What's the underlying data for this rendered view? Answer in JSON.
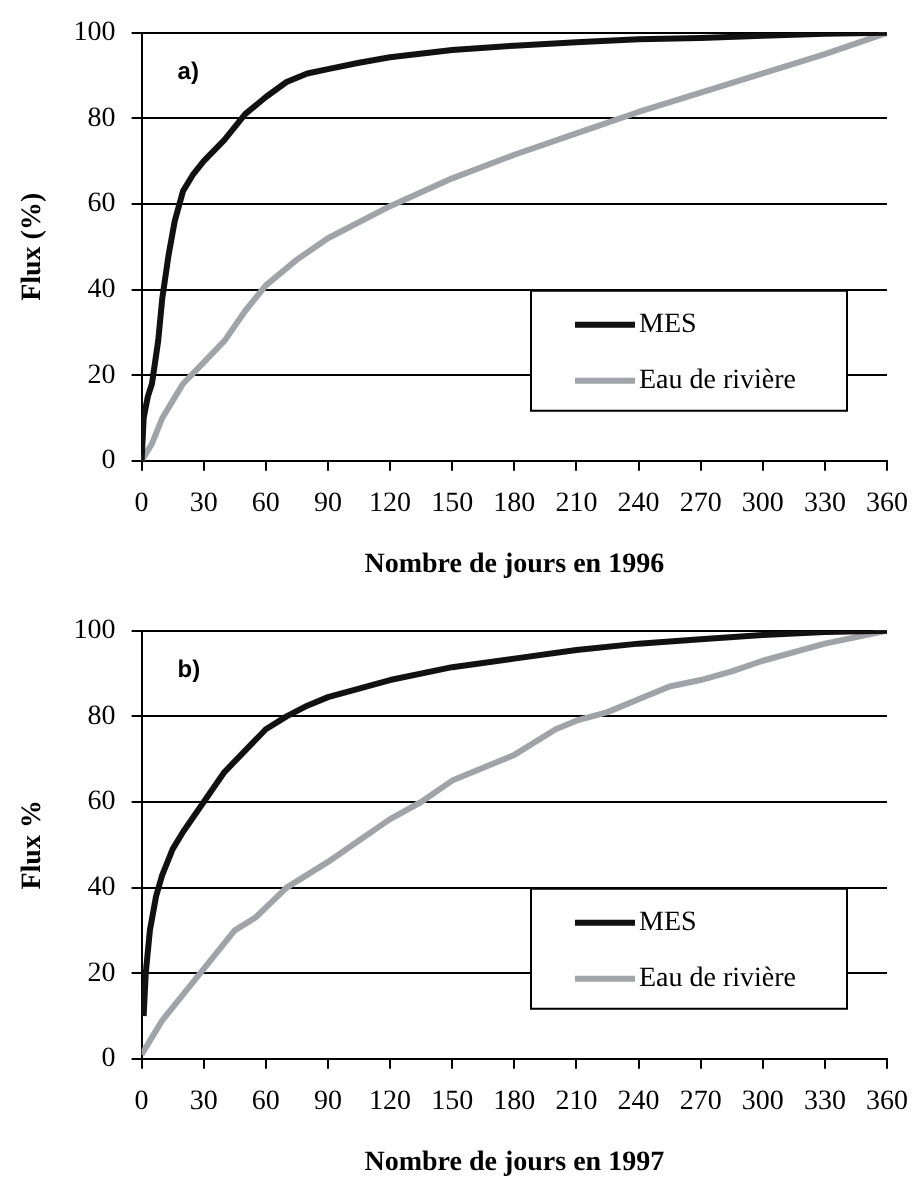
{
  "chart_data": [
    {
      "type": "line",
      "xlabel": "Nombre de jours en 1996",
      "ylabel": "Flux (%)",
      "annotations": [
        "a)"
      ],
      "xlim": [
        0,
        360
      ],
      "xticks": [
        0,
        30,
        60,
        90,
        120,
        150,
        180,
        210,
        240,
        270,
        300,
        330,
        360
      ],
      "ylim": [
        0,
        100
      ],
      "yticks": [
        0,
        20,
        40,
        60,
        80,
        100
      ],
      "grid": "y",
      "legend": "bottom right",
      "marker": "none",
      "line_style": "solid",
      "series": [
        {
          "name": "MES",
          "color": "#111111",
          "x": [
            0,
            1,
            3,
            5,
            8,
            10,
            13,
            16,
            20,
            25,
            30,
            40,
            50,
            60,
            70,
            80,
            90,
            105,
            120,
            150,
            180,
            210,
            240,
            270,
            300,
            330,
            360
          ],
          "values": [
            0,
            10,
            15,
            18,
            28,
            38,
            48,
            56,
            63,
            67,
            70,
            75,
            81,
            85,
            88.5,
            90.5,
            91.5,
            93,
            94.3,
            96,
            97,
            97.8,
            98.5,
            98.8,
            99.3,
            99.8,
            100
          ]
        },
        {
          "name": "Eau de rivière",
          "color": "#a0a4a8",
          "x": [
            0,
            5,
            10,
            15,
            20,
            30,
            40,
            50,
            60,
            75,
            90,
            120,
            150,
            180,
            210,
            240,
            270,
            300,
            330,
            360
          ],
          "values": [
            0,
            4,
            10,
            14,
            18,
            23,
            28,
            35,
            41,
            47,
            52,
            59.5,
            66,
            71.5,
            76.5,
            81.5,
            86,
            90.5,
            95,
            100
          ]
        }
      ]
    },
    {
      "type": "line",
      "xlabel": "Nombre de jours en 1997",
      "ylabel": "Flux %",
      "annotations": [
        "b)"
      ],
      "xlim": [
        0,
        360
      ],
      "xticks": [
        0,
        30,
        60,
        90,
        120,
        150,
        180,
        210,
        240,
        270,
        300,
        330,
        360
      ],
      "ylim": [
        0,
        100
      ],
      "yticks": [
        0,
        20,
        40,
        60,
        80,
        100
      ],
      "grid": "y",
      "legend": "bottom right",
      "marker": "none",
      "line_style": "solid",
      "series": [
        {
          "name": "MES",
          "color": "#111111",
          "x": [
            1,
            2,
            4,
            7,
            10,
            15,
            20,
            30,
            40,
            50,
            60,
            70,
            80,
            90,
            105,
            120,
            150,
            180,
            210,
            240,
            270,
            300,
            330,
            360
          ],
          "values": [
            10,
            20,
            30,
            38,
            43,
            49,
            53,
            60,
            67,
            72,
            77,
            80,
            82.5,
            84.5,
            86.5,
            88.5,
            91.5,
            93.5,
            95.5,
            97,
            98,
            99,
            99.7,
            100
          ]
        },
        {
          "name": "Eau de rivière",
          "color": "#a0a4a8",
          "x": [
            0,
            5,
            10,
            20,
            30,
            40,
            45,
            55,
            70,
            90,
            105,
            120,
            135,
            150,
            180,
            200,
            210,
            225,
            240,
            255,
            270,
            285,
            300,
            330,
            360
          ],
          "values": [
            1,
            5,
            9,
            15,
            21,
            27,
            30,
            33,
            40,
            46,
            51,
            56,
            60,
            65,
            71,
            77,
            79,
            81,
            84,
            87,
            88.5,
            90.5,
            93,
            97,
            100
          ]
        }
      ]
    }
  ]
}
